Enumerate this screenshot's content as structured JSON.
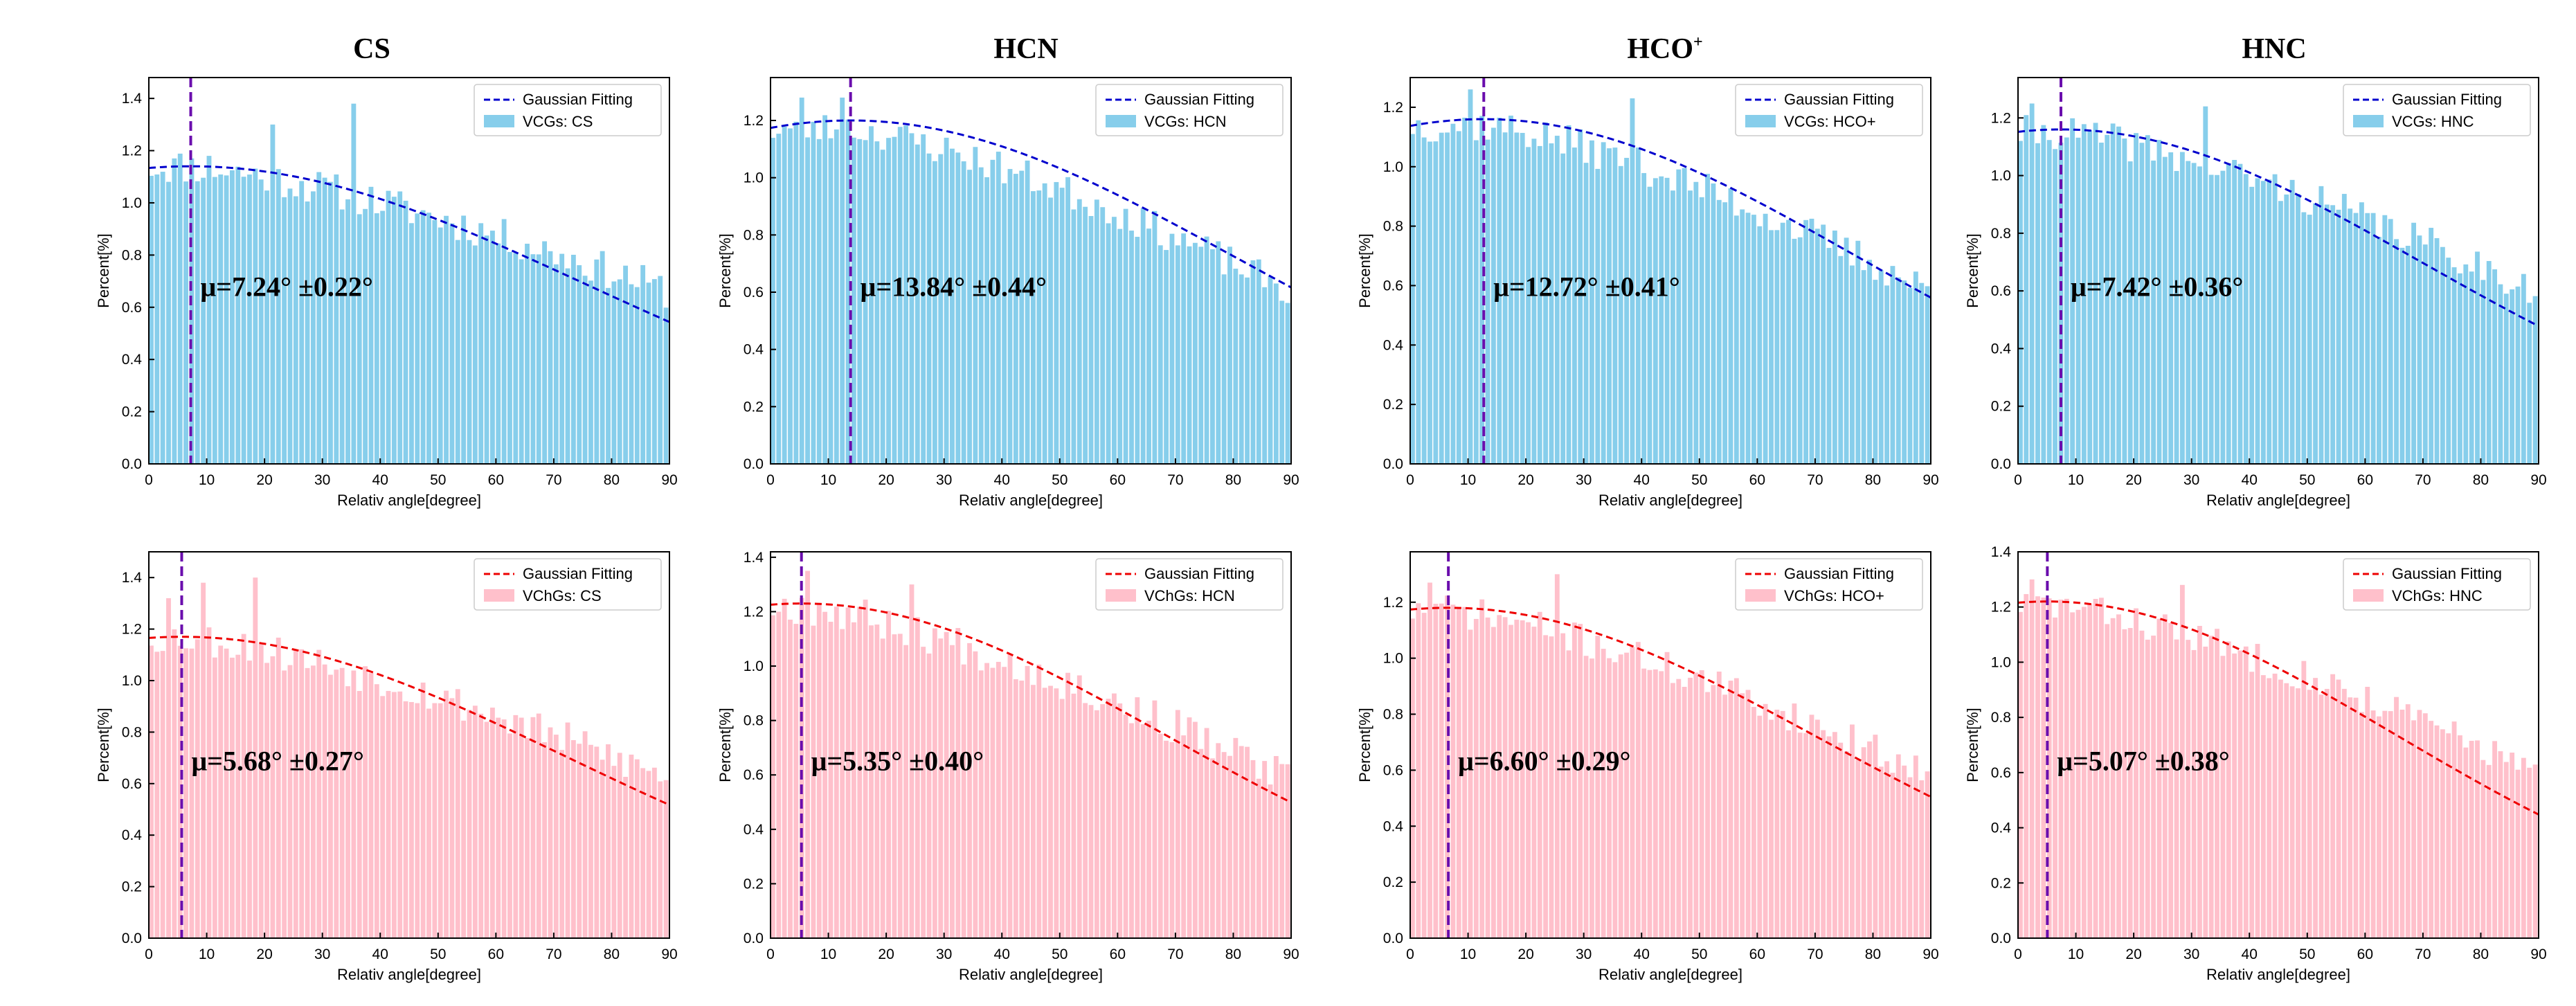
{
  "figure": {
    "column_titles": [
      "CS",
      "HCN",
      "HCO",
      "HNC"
    ],
    "column_title_superscripts": [
      "",
      "",
      "+",
      ""
    ]
  },
  "colors": {
    "top_bar": "#87ceeb",
    "top_fit": "#0000cd",
    "bottom_bar": "#ffc0cb",
    "bottom_fit": "#ee0000",
    "mu_line": "#6a0dad"
  },
  "chart_data": [
    {
      "type": "bar",
      "row": 0,
      "col": 0,
      "title": "CS",
      "xlabel": "Relativ angle[degree]",
      "ylabel": "Percent[%]",
      "xlim": [
        0,
        90
      ],
      "ylim": [
        0,
        1.48
      ],
      "xticks": [
        0,
        10,
        20,
        30,
        40,
        50,
        60,
        70,
        80,
        90
      ],
      "yticks": [
        0.0,
        0.2,
        0.4,
        0.6,
        0.8,
        1.0,
        1.2,
        1.4
      ],
      "ytick_labels": [
        "0.0",
        "0.2",
        "0.4",
        "0.6",
        "0.8",
        "1.0",
        "1.2",
        "1.4"
      ],
      "legend": {
        "fit": "Gaussian Fitting",
        "bars": "VCGs: CS"
      },
      "legend_position": "top-right",
      "fit": {
        "amplitude": 1.14,
        "mu": 7.24,
        "sigma": 68
      },
      "mu_label": "μ=7.24°  ±0.22°",
      "bar_start": 1.14,
      "bar_end": 0.66,
      "bar_peak": 7.24,
      "noise": 0.07,
      "spikes": [
        [
          10,
          1.18
        ],
        [
          35,
          1.38
        ],
        [
          21,
          1.3
        ]
      ],
      "seed": 11
    },
    {
      "type": "bar",
      "row": 0,
      "col": 1,
      "title": "HCN",
      "xlabel": "Relativ angle[degree]",
      "ylabel": "Percent[%]",
      "xlim": [
        0,
        90
      ],
      "ylim": [
        0,
        1.35
      ],
      "xticks": [
        0,
        10,
        20,
        30,
        40,
        50,
        60,
        70,
        80,
        90
      ],
      "yticks": [
        0.0,
        0.2,
        0.4,
        0.6,
        0.8,
        1.0,
        1.2
      ],
      "ytick_labels": [
        "0.0",
        "0.2",
        "0.4",
        "0.6",
        "0.8",
        "1.0",
        "1.2"
      ],
      "legend": {
        "fit": "Gaussian Fitting",
        "bars": "VCGs: HCN"
      },
      "legend_position": "top-right",
      "fit": {
        "amplitude": 1.2,
        "mu": 13.84,
        "sigma": 66
      },
      "mu_label": "μ=13.84°  ±0.44°",
      "bar_start": 1.17,
      "bar_end": 0.6,
      "bar_peak": 13.84,
      "noise": 0.06,
      "spikes": [
        [
          5,
          1.28
        ],
        [
          12,
          1.28
        ]
      ],
      "seed": 23
    },
    {
      "type": "bar",
      "row": 0,
      "col": 2,
      "title": "HCO+",
      "xlabel": "Relativ angle[degree]",
      "ylabel": "Percent[%]",
      "xlim": [
        0,
        90
      ],
      "ylim": [
        0,
        1.3
      ],
      "xticks": [
        0,
        10,
        20,
        30,
        40,
        50,
        60,
        70,
        80,
        90
      ],
      "yticks": [
        0.0,
        0.2,
        0.4,
        0.6,
        0.8,
        1.0,
        1.2
      ],
      "ytick_labels": [
        "0.0",
        "0.2",
        "0.4",
        "0.6",
        "0.8",
        "1.0",
        "1.2"
      ],
      "legend": {
        "fit": "Gaussian Fitting",
        "bars": "VCGs: HCO+"
      },
      "legend_position": "top-right",
      "fit": {
        "amplitude": 1.16,
        "mu": 12.72,
        "sigma": 64
      },
      "mu_label": "μ=12.72°  ±0.41°",
      "bar_start": 1.14,
      "bar_end": 0.58,
      "bar_peak": 12.72,
      "noise": 0.06,
      "spikes": [
        [
          10,
          1.26
        ],
        [
          38,
          1.23
        ]
      ],
      "seed": 37
    },
    {
      "type": "bar",
      "row": 0,
      "col": 3,
      "title": "HNC",
      "xlabel": "Relativ angle[degree]",
      "ylabel": "Percent[%]",
      "xlim": [
        0,
        90
      ],
      "ylim": [
        0,
        1.34
      ],
      "xticks": [
        0,
        10,
        20,
        30,
        40,
        50,
        60,
        70,
        80,
        90
      ],
      "yticks": [
        0.0,
        0.2,
        0.4,
        0.6,
        0.8,
        1.0,
        1.2
      ],
      "ytick_labels": [
        "0.0",
        "0.2",
        "0.4",
        "0.6",
        "0.8",
        "1.0",
        "1.2"
      ],
      "legend": {
        "fit": "Gaussian Fitting",
        "bars": "VCGs: HNC"
      },
      "legend_position": "top-right",
      "fit": {
        "amplitude": 1.16,
        "mu": 7.42,
        "sigma": 62
      },
      "mu_label": "μ=7.42°  ±0.36°",
      "bar_start": 1.15,
      "bar_end": 0.6,
      "bar_peak": 7.42,
      "noise": 0.06,
      "spikes": [
        [
          2,
          1.25
        ],
        [
          32,
          1.24
        ]
      ],
      "seed": 41
    },
    {
      "type": "bar",
      "row": 1,
      "col": 0,
      "title": "",
      "xlabel": "Relativ angle[degree]",
      "ylabel": "Percent[%]",
      "xlim": [
        0,
        90
      ],
      "ylim": [
        0,
        1.5
      ],
      "xticks": [
        0,
        10,
        20,
        30,
        40,
        50,
        60,
        70,
        80,
        90
      ],
      "yticks": [
        0.0,
        0.2,
        0.4,
        0.6,
        0.8,
        1.0,
        1.2,
        1.4
      ],
      "ytick_labels": [
        "0.0",
        "0.2",
        "0.4",
        "0.6",
        "0.8",
        "1.0",
        "1.2",
        "1.4"
      ],
      "legend": {
        "fit": "Gaussian Fitting",
        "bars": "VChGs: CS"
      },
      "legend_position": "top-right",
      "fit": {
        "amplitude": 1.17,
        "mu": 5.68,
        "sigma": 66
      },
      "mu_label": "μ=5.68°  ±0.27°",
      "bar_start": 1.17,
      "bar_end": 0.62,
      "bar_peak": 5.68,
      "noise": 0.07,
      "spikes": [
        [
          9,
          1.38
        ],
        [
          18,
          1.4
        ],
        [
          3,
          1.32
        ]
      ],
      "seed": 53
    },
    {
      "type": "bar",
      "row": 1,
      "col": 1,
      "title": "",
      "xlabel": "Relativ angle[degree]",
      "ylabel": "Percent[%]",
      "xlim": [
        0,
        90
      ],
      "ylim": [
        0,
        1.42
      ],
      "xticks": [
        0,
        10,
        20,
        30,
        40,
        50,
        60,
        70,
        80,
        90
      ],
      "yticks": [
        0.0,
        0.2,
        0.4,
        0.6,
        0.8,
        1.0,
        1.2,
        1.4
      ],
      "ytick_labels": [
        "0.0",
        "0.2",
        "0.4",
        "0.6",
        "0.8",
        "1.0",
        "1.2",
        "1.4"
      ],
      "legend": {
        "fit": "Gaussian Fitting",
        "bars": "VChGs: HCN"
      },
      "legend_position": "top-right",
      "fit": {
        "amplitude": 1.23,
        "mu": 5.35,
        "sigma": 63
      },
      "mu_label": "μ=5.35°  ±0.40°",
      "bar_start": 1.22,
      "bar_end": 0.58,
      "bar_peak": 5.35,
      "noise": 0.07,
      "spikes": [
        [
          6,
          1.35
        ],
        [
          24,
          1.3
        ]
      ],
      "seed": 67
    },
    {
      "type": "bar",
      "row": 1,
      "col": 2,
      "title": "",
      "xlabel": "Relativ angle[degree]",
      "ylabel": "Percent[%]",
      "xlim": [
        0,
        90
      ],
      "ylim": [
        0,
        1.38
      ],
      "xticks": [
        0,
        10,
        20,
        30,
        40,
        50,
        60,
        70,
        80,
        90
      ],
      "yticks": [
        0.0,
        0.2,
        0.4,
        0.6,
        0.8,
        1.0,
        1.2
      ],
      "ytick_labels": [
        "0.0",
        "0.2",
        "0.4",
        "0.6",
        "0.8",
        "1.0",
        "1.2"
      ],
      "legend": {
        "fit": "Gaussian Fitting",
        "bars": "VChGs: HCO+"
      },
      "legend_position": "top-right",
      "fit": {
        "amplitude": 1.18,
        "mu": 6.6,
        "sigma": 64
      },
      "mu_label": "μ=6.60°  ±0.29°",
      "bar_start": 1.17,
      "bar_end": 0.58,
      "bar_peak": 6.6,
      "noise": 0.06,
      "spikes": [
        [
          3,
          1.27
        ],
        [
          25,
          1.3
        ]
      ],
      "seed": 71
    },
    {
      "type": "bar",
      "row": 1,
      "col": 3,
      "title": "",
      "xlabel": "Relativ angle[degree]",
      "ylabel": "Percent[%]",
      "xlim": [
        0,
        90
      ],
      "ylim": [
        0,
        1.4
      ],
      "xticks": [
        0,
        10,
        20,
        30,
        40,
        50,
        60,
        70,
        80,
        90
      ],
      "yticks": [
        0.0,
        0.2,
        0.4,
        0.6,
        0.8,
        1.0,
        1.2,
        1.4
      ],
      "ytick_labels": [
        "0.0",
        "0.2",
        "0.4",
        "0.6",
        "0.8",
        "1.0",
        "1.2",
        "1.4"
      ],
      "legend": {
        "fit": "Gaussian Fitting",
        "bars": "VChGs: HNC"
      },
      "legend_position": "top-right",
      "fit": {
        "amplitude": 1.22,
        "mu": 5.07,
        "sigma": 60
      },
      "mu_label": "μ=5.07°  ±0.38°",
      "bar_start": 1.21,
      "bar_end": 0.6,
      "bar_peak": 5.07,
      "noise": 0.06,
      "spikes": [
        [
          2,
          1.3
        ],
        [
          28,
          1.28
        ]
      ],
      "seed": 83
    }
  ]
}
